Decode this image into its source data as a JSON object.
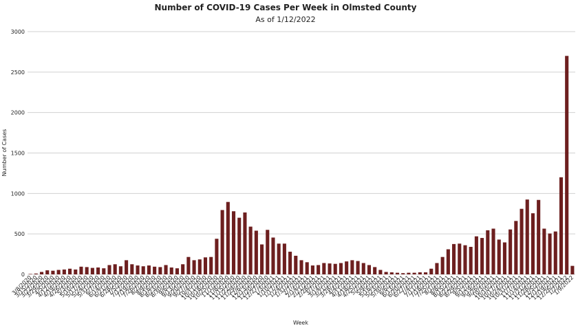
{
  "chart_data": {
    "type": "bar",
    "title": "Number of COVID-19 Cases Per Week in Olmsted County",
    "subtitle": "As of 1/12/2022",
    "xlabel": "Week",
    "ylabel": "Number of Cases",
    "ylim": [
      0,
      3000
    ],
    "yticks": [
      0,
      500,
      1000,
      1500,
      2000,
      2500,
      3000
    ],
    "grid": true,
    "color": "#6d1f1f",
    "categories": [
      "3/8/2020",
      "3/15/2020",
      "3/22/2020",
      "3/29/2020",
      "4/5/2020",
      "4/12/2020",
      "4/19/2020",
      "4/26/2020",
      "5/3/2020",
      "5/10/2020",
      "5/17/2020",
      "5/24/2020",
      "5/31/2020",
      "6/7/2020",
      "6/14/2020",
      "6/21/2020",
      "6/28/2020",
      "7/5/2020",
      "7/12/2020",
      "7/19/2020",
      "7/26/2020",
      "8/2/2020",
      "8/9/2020",
      "8/16/2020",
      "8/23/2020",
      "8/30/2020",
      "9/6/2020",
      "9/13/2020",
      "9/20/2020",
      "9/27/2020",
      "10/4/2020",
      "10/11/2020",
      "10/18/2020",
      "10/25/2020",
      "11/1/2020",
      "11/8/2020",
      "11/15/2020",
      "11/22/2020",
      "11/29/2020",
      "12/6/2020",
      "12/13/2020",
      "12/20/2020",
      "12/27/2020",
      "1/3/2021",
      "1/10/2021",
      "1/17/2021",
      "1/24/2021",
      "1/31/2021",
      "2/7/2021",
      "2/14/2021",
      "2/21/2021",
      "2/28/2021",
      "3/7/2021",
      "3/14/2021",
      "3/21/2021",
      "3/28/2021",
      "4/4/2021",
      "4/11/2021",
      "4/18/2021",
      "4/25/2021",
      "5/2/2021",
      "5/9/2021",
      "5/16/2021",
      "5/23/2021",
      "5/30/2021",
      "6/6/2021",
      "6/13/2021",
      "6/20/2021",
      "6/27/2021",
      "7/4/2021",
      "7/11/2021",
      "7/18/2021",
      "7/25/2021",
      "8/1/2021",
      "8/8/2021",
      "8/15/2021",
      "8/22/2021",
      "8/29/2021",
      "9/5/2021",
      "9/12/2021",
      "9/19/2021",
      "9/26/2021",
      "10/3/2021",
      "10/10/2021",
      "10/17/2021",
      "10/24/2021",
      "10/31/2021",
      "11/7/2021",
      "11/14/2021",
      "11/21/2021",
      "11/28/2021",
      "12/5/2021",
      "12/12/2021",
      "12/19/2021",
      "12/26/2021",
      "1/2/2022",
      "1/9/2022"
    ],
    "values": [
      5,
      10,
      30,
      50,
      45,
      55,
      60,
      70,
      60,
      95,
      90,
      80,
      85,
      75,
      115,
      125,
      100,
      175,
      125,
      110,
      100,
      110,
      95,
      90,
      115,
      85,
      75,
      125,
      215,
      175,
      185,
      210,
      215,
      440,
      795,
      895,
      780,
      700,
      765,
      590,
      540,
      370,
      550,
      455,
      380,
      380,
      280,
      230,
      175,
      150,
      110,
      115,
      140,
      135,
      130,
      140,
      160,
      175,
      165,
      140,
      115,
      90,
      55,
      30,
      25,
      20,
      15,
      20,
      20,
      25,
      25,
      70,
      140,
      215,
      310,
      375,
      380,
      360,
      340,
      470,
      450,
      545,
      565,
      430,
      395,
      555,
      660,
      810,
      925,
      755,
      920,
      565,
      505,
      530,
      1200,
      2700,
      105
    ]
  }
}
